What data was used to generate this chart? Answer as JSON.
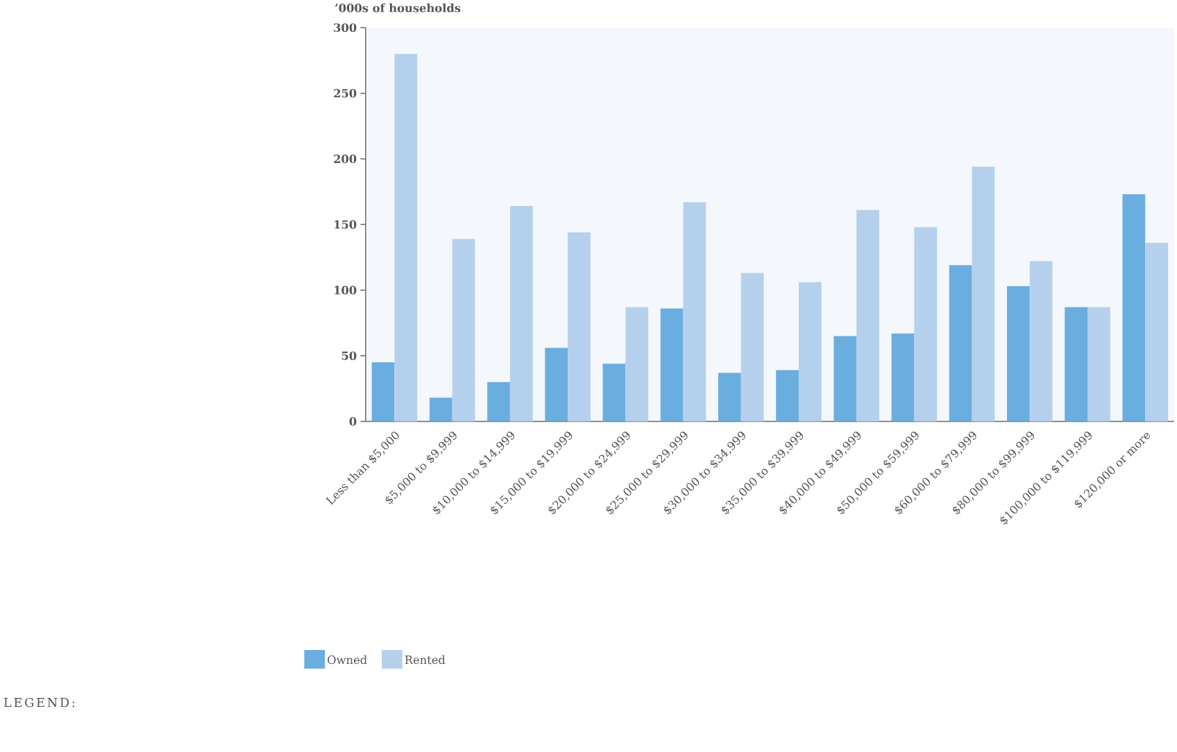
{
  "chart_data": {
    "type": "bar",
    "ylabel": "’000s of households",
    "legend_title": "LEGEND:",
    "categories": [
      "Less than $5,000",
      "$5,000 to $9,999",
      "$10,000 to $14,999",
      "$15,000 to $19,999",
      "$20,000 to $24,999",
      "$25,000 to $29,999",
      "$30,000 to $34,999",
      "$35,000 to $39,999",
      "$40,000 to $49,999",
      "$50,000 to $59,999",
      "$60,000 to $79,999",
      "$80,000 to $99,999",
      "$100,000 to $119,999",
      "$120,000 or more"
    ],
    "series": [
      {
        "name": "Owned",
        "color": "#6aaddf",
        "values": [
          45,
          18,
          30,
          56,
          44,
          86,
          37,
          39,
          65,
          67,
          119,
          103,
          87,
          173
        ]
      },
      {
        "name": "Rented",
        "color": "#b5d0ec",
        "values": [
          280,
          139,
          164,
          144,
          87,
          167,
          113,
          106,
          161,
          148,
          194,
          122,
          87,
          136
        ]
      }
    ],
    "ylim": [
      0,
      300
    ],
    "yticks": [
      0,
      50,
      100,
      150,
      200,
      250,
      300
    ],
    "legend": "bottom left"
  }
}
